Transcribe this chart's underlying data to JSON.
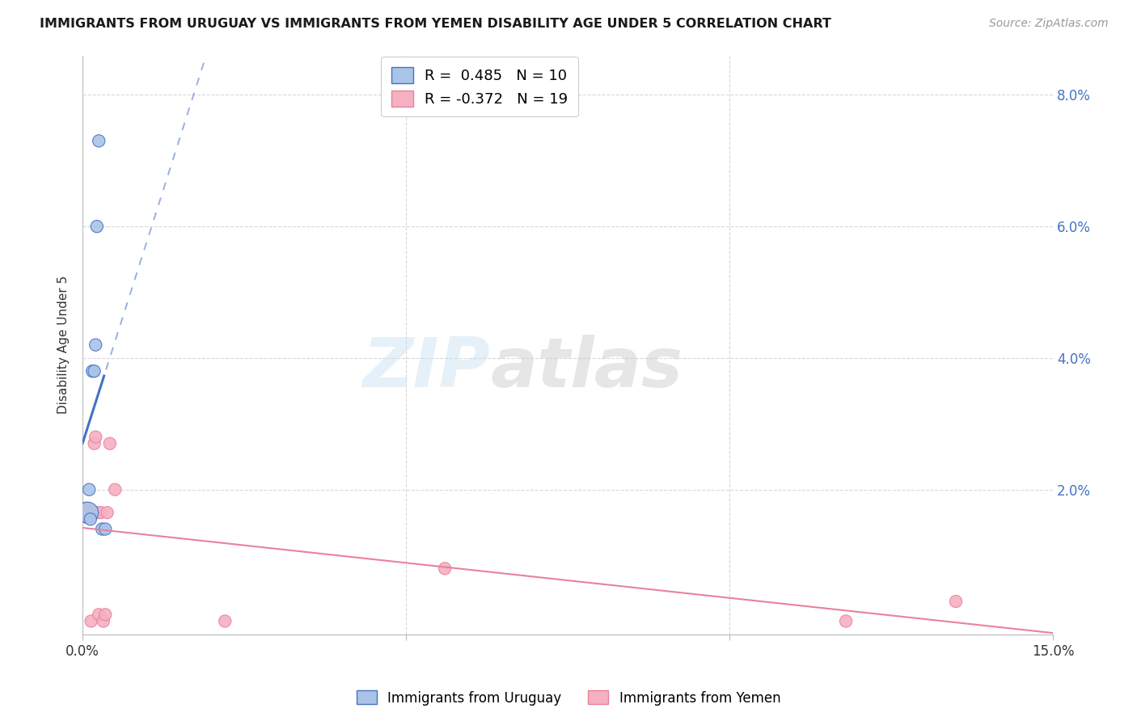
{
  "title": "IMMIGRANTS FROM URUGUAY VS IMMIGRANTS FROM YEMEN DISABILITY AGE UNDER 5 CORRELATION CHART",
  "source": "Source: ZipAtlas.com",
  "ylabel": "Disability Age Under 5",
  "watermark_zip": "ZIP",
  "watermark_atlas": "atlas",
  "xlim": [
    0.0,
    0.15
  ],
  "ylim": [
    -0.002,
    0.086
  ],
  "uruguay_x": [
    0.0008,
    0.001,
    0.0012,
    0.0015,
    0.0018,
    0.002,
    0.0022,
    0.0025,
    0.003,
    0.0035
  ],
  "uruguay_y": [
    0.0165,
    0.02,
    0.0155,
    0.038,
    0.038,
    0.042,
    0.06,
    0.073,
    0.014,
    0.014
  ],
  "uruguay_sizes": [
    350,
    120,
    120,
    120,
    120,
    120,
    120,
    120,
    120,
    120
  ],
  "yemen_x": [
    0.0005,
    0.0008,
    0.001,
    0.0013,
    0.0015,
    0.0018,
    0.002,
    0.0022,
    0.0025,
    0.0028,
    0.0032,
    0.0035,
    0.0038,
    0.0042,
    0.005,
    0.022,
    0.056,
    0.118,
    0.135
  ],
  "yemen_y": [
    0.0165,
    0.0165,
    0.0165,
    0.0,
    0.0165,
    0.027,
    0.028,
    0.0165,
    0.001,
    0.0165,
    0.0,
    0.001,
    0.0165,
    0.027,
    0.02,
    0.0,
    0.008,
    0.0,
    0.003
  ],
  "yemen_sizes": [
    350,
    120,
    120,
    120,
    120,
    120,
    120,
    120,
    120,
    120,
    120,
    120,
    120,
    120,
    120,
    120,
    120,
    120,
    120
  ],
  "uruguay_color": "#aac4e8",
  "yemen_color": "#f5b0c2",
  "uruguay_line_color": "#4472c4",
  "yemen_line_color": "#e8829a",
  "grid_color": "#d8d8d8",
  "background_color": "#ffffff",
  "legend_R_uruguay": "R =  0.485",
  "legend_N_uruguay": "N = 10",
  "legend_R_yemen": "R = -0.372",
  "legend_N_yemen": "N = 19"
}
